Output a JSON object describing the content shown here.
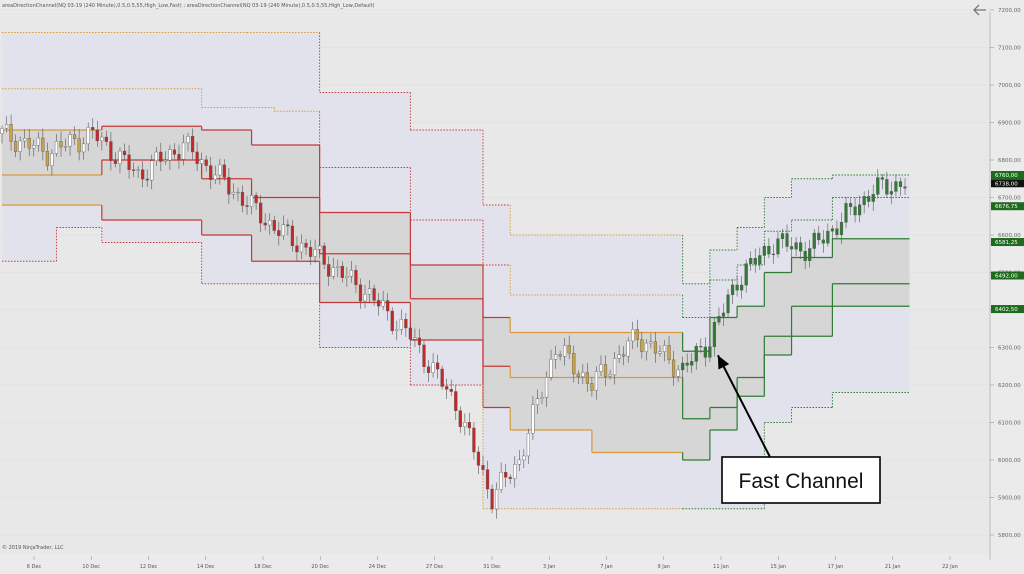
{
  "header": {
    "indicator_text": "areaDirectionChannel(NQ 03-19 (240 Minute),0.5,0.5,55,High_Low,Fast) ; areaDirectionChannel(NQ 03-19 (240 Minute),0.5,0.5,55,High_Low,Default)"
  },
  "footer": {
    "copyright": "© 2019 NinjaTrader, LLC"
  },
  "annotation": {
    "label": "Fast Channel"
  },
  "icons": {
    "back": "back-arrow-icon"
  },
  "colors": {
    "background": "#ebebeb",
    "plot_area": "#e8e8e8",
    "outer_fill": "#e2e2ec",
    "inner_fill": "#d6d6d6",
    "up_candle": "#2e7d32",
    "down_candle": "#c62828",
    "neutral_candle": "#c9a24a",
    "red_line": "#c43a3a",
    "orange_line": "#d99a3a",
    "green_line": "#2e7d32",
    "badge_green": "#1e6b1e",
    "badge_black": "#111111"
  },
  "chart_data": {
    "type": "candlestick",
    "title": "",
    "xlabel": "",
    "ylabel": "",
    "ylim": [
      5800,
      7200
    ],
    "x_tick_labels": [
      "6 Dec",
      "10 Dec",
      "12 Dec",
      "14 Dec",
      "18 Dec",
      "20 Dec",
      "24 Dec",
      "27 Dec",
      "31 Dec",
      "3 Jan",
      "7 Jan",
      "9 Jan",
      "11 Jan",
      "15 Jan",
      "17 Jan",
      "21 Jan",
      "22 Jan"
    ],
    "y_tick_labels": [
      "7200,00",
      "7100,00",
      "7000,00",
      "6900,00",
      "6800,00",
      "6700,00",
      "6600,00",
      "6500,00",
      "6400,00",
      "6300,00",
      "6200,00",
      "6100,00",
      "6000,00",
      "5900,00",
      "5800,00"
    ],
    "price_badges": [
      {
        "value": 6760.0,
        "label": "6760,00",
        "color": "green"
      },
      {
        "value": 6738.0,
        "label": "6738,00",
        "color": "black"
      },
      {
        "value": 6676.75,
        "label": "6676,75",
        "color": "green"
      },
      {
        "value": 6581.25,
        "label": "6581,25",
        "color": "green"
      },
      {
        "value": 6492.0,
        "label": "6492,00",
        "color": "green"
      },
      {
        "value": 6402.5,
        "label": "6402,50",
        "color": "green"
      }
    ],
    "grid": true,
    "candle_count": 200,
    "bands": [
      {
        "role": "outer-upper",
        "style": "dotted",
        "points": [
          [
            0,
            7140
          ],
          [
            22,
            7140
          ],
          [
            22,
            7140
          ],
          [
            54,
            7140
          ],
          [
            54,
            7140
          ],
          [
            70,
            7140
          ],
          [
            70,
            6980
          ],
          [
            90,
            6980
          ],
          [
            90,
            6880
          ],
          [
            106,
            6880
          ],
          [
            106,
            6680
          ],
          [
            112,
            6680
          ],
          [
            112,
            6600
          ],
          [
            130,
            6600
          ],
          [
            130,
            6600
          ],
          [
            150,
            6600
          ],
          [
            150,
            6470
          ],
          [
            156,
            6470
          ],
          [
            156,
            6560
          ],
          [
            162,
            6560
          ],
          [
            162,
            6620
          ],
          [
            168,
            6620
          ],
          [
            168,
            6700
          ],
          [
            174,
            6700
          ],
          [
            174,
            6750
          ],
          [
            183,
            6750
          ],
          [
            183,
            6760
          ],
          [
            200,
            6760
          ]
        ]
      },
      {
        "role": "outer-mid",
        "style": "dotted",
        "points": [
          [
            0,
            6990
          ],
          [
            22,
            6990
          ],
          [
            22,
            6990
          ],
          [
            44,
            6990
          ],
          [
            44,
            6940
          ],
          [
            60,
            6940
          ],
          [
            60,
            6930
          ],
          [
            70,
            6930
          ],
          [
            70,
            6780
          ],
          [
            90,
            6780
          ],
          [
            90,
            6640
          ],
          [
            106,
            6640
          ],
          [
            106,
            6520
          ],
          [
            112,
            6520
          ],
          [
            112,
            6440
          ],
          [
            130,
            6440
          ],
          [
            130,
            6440
          ],
          [
            150,
            6440
          ],
          [
            150,
            6380
          ],
          [
            156,
            6380
          ],
          [
            156,
            6480
          ],
          [
            162,
            6480
          ],
          [
            162,
            6520
          ],
          [
            168,
            6520
          ],
          [
            168,
            6610
          ],
          [
            174,
            6610
          ],
          [
            174,
            6640
          ],
          [
            183,
            6640
          ],
          [
            183,
            6700
          ],
          [
            200,
            6700
          ]
        ]
      },
      {
        "role": "inner-upper",
        "style": "solid",
        "points": [
          [
            0,
            6880
          ],
          [
            22,
            6880
          ],
          [
            22,
            6890
          ],
          [
            44,
            6890
          ],
          [
            44,
            6880
          ],
          [
            55,
            6880
          ],
          [
            55,
            6840
          ],
          [
            70,
            6840
          ],
          [
            70,
            6660
          ],
          [
            90,
            6660
          ],
          [
            90,
            6520
          ],
          [
            106,
            6520
          ],
          [
            106,
            6380
          ],
          [
            112,
            6380
          ],
          [
            112,
            6340
          ],
          [
            130,
            6340
          ],
          [
            130,
            6340
          ],
          [
            150,
            6340
          ],
          [
            150,
            6290
          ],
          [
            156,
            6290
          ],
          [
            156,
            6380
          ],
          [
            162,
            6380
          ],
          [
            162,
            6410
          ],
          [
            168,
            6410
          ],
          [
            168,
            6500
          ],
          [
            174,
            6500
          ],
          [
            174,
            6540
          ],
          [
            183,
            6540
          ],
          [
            183,
            6590
          ],
          [
            200,
            6590
          ]
        ]
      },
      {
        "role": "inner-mid",
        "style": "solid",
        "points": [
          [
            0,
            6760
          ],
          [
            22,
            6760
          ],
          [
            22,
            6800
          ],
          [
            44,
            6800
          ],
          [
            44,
            6750
          ],
          [
            55,
            6750
          ],
          [
            55,
            6700
          ],
          [
            70,
            6700
          ],
          [
            70,
            6550
          ],
          [
            90,
            6550
          ],
          [
            90,
            6430
          ],
          [
            106,
            6430
          ],
          [
            106,
            6250
          ],
          [
            112,
            6250
          ],
          [
            112,
            6220
          ],
          [
            130,
            6220
          ],
          [
            130,
            6220
          ],
          [
            150,
            6220
          ],
          [
            150,
            6110
          ],
          [
            156,
            6110
          ],
          [
            156,
            6140
          ],
          [
            162,
            6140
          ],
          [
            162,
            6220
          ],
          [
            168,
            6220
          ],
          [
            168,
            6330
          ],
          [
            174,
            6330
          ],
          [
            174,
            6410
          ],
          [
            183,
            6410
          ],
          [
            183,
            6470
          ],
          [
            200,
            6470
          ]
        ]
      },
      {
        "role": "inner-lower",
        "style": "solid",
        "points": [
          [
            0,
            6680
          ],
          [
            22,
            6680
          ],
          [
            22,
            6640
          ],
          [
            44,
            6640
          ],
          [
            44,
            6600
          ],
          [
            55,
            6600
          ],
          [
            55,
            6530
          ],
          [
            70,
            6530
          ],
          [
            70,
            6420
          ],
          [
            90,
            6420
          ],
          [
            90,
            6320
          ],
          [
            106,
            6320
          ],
          [
            106,
            6140
          ],
          [
            112,
            6140
          ],
          [
            112,
            6080
          ],
          [
            130,
            6080
          ],
          [
            130,
            6020
          ],
          [
            150,
            6020
          ],
          [
            150,
            6000
          ],
          [
            156,
            6000
          ],
          [
            156,
            6080
          ],
          [
            162,
            6080
          ],
          [
            162,
            6170
          ],
          [
            168,
            6170
          ],
          [
            168,
            6280
          ],
          [
            174,
            6280
          ],
          [
            174,
            6330
          ],
          [
            183,
            6330
          ],
          [
            183,
            6410
          ],
          [
            200,
            6410
          ]
        ]
      },
      {
        "role": "outer-lower",
        "style": "dotted",
        "points": [
          [
            0,
            6530
          ],
          [
            12,
            6530
          ],
          [
            12,
            6620
          ],
          [
            22,
            6620
          ],
          [
            22,
            6580
          ],
          [
            44,
            6580
          ],
          [
            44,
            6470
          ],
          [
            70,
            6470
          ],
          [
            70,
            6300
          ],
          [
            90,
            6300
          ],
          [
            90,
            6200
          ],
          [
            106,
            6200
          ],
          [
            106,
            5870
          ],
          [
            112,
            5870
          ],
          [
            112,
            5870
          ],
          [
            150,
            5870
          ],
          [
            150,
            5870
          ],
          [
            168,
            5870
          ],
          [
            168,
            6100
          ],
          [
            174,
            6100
          ],
          [
            174,
            6140
          ],
          [
            183,
            6140
          ],
          [
            183,
            6180
          ],
          [
            200,
            6180
          ]
        ]
      }
    ],
    "annotations": [
      {
        "text": "Fast Channel",
        "arrow_to": [
          156,
          6290
        ]
      }
    ]
  }
}
